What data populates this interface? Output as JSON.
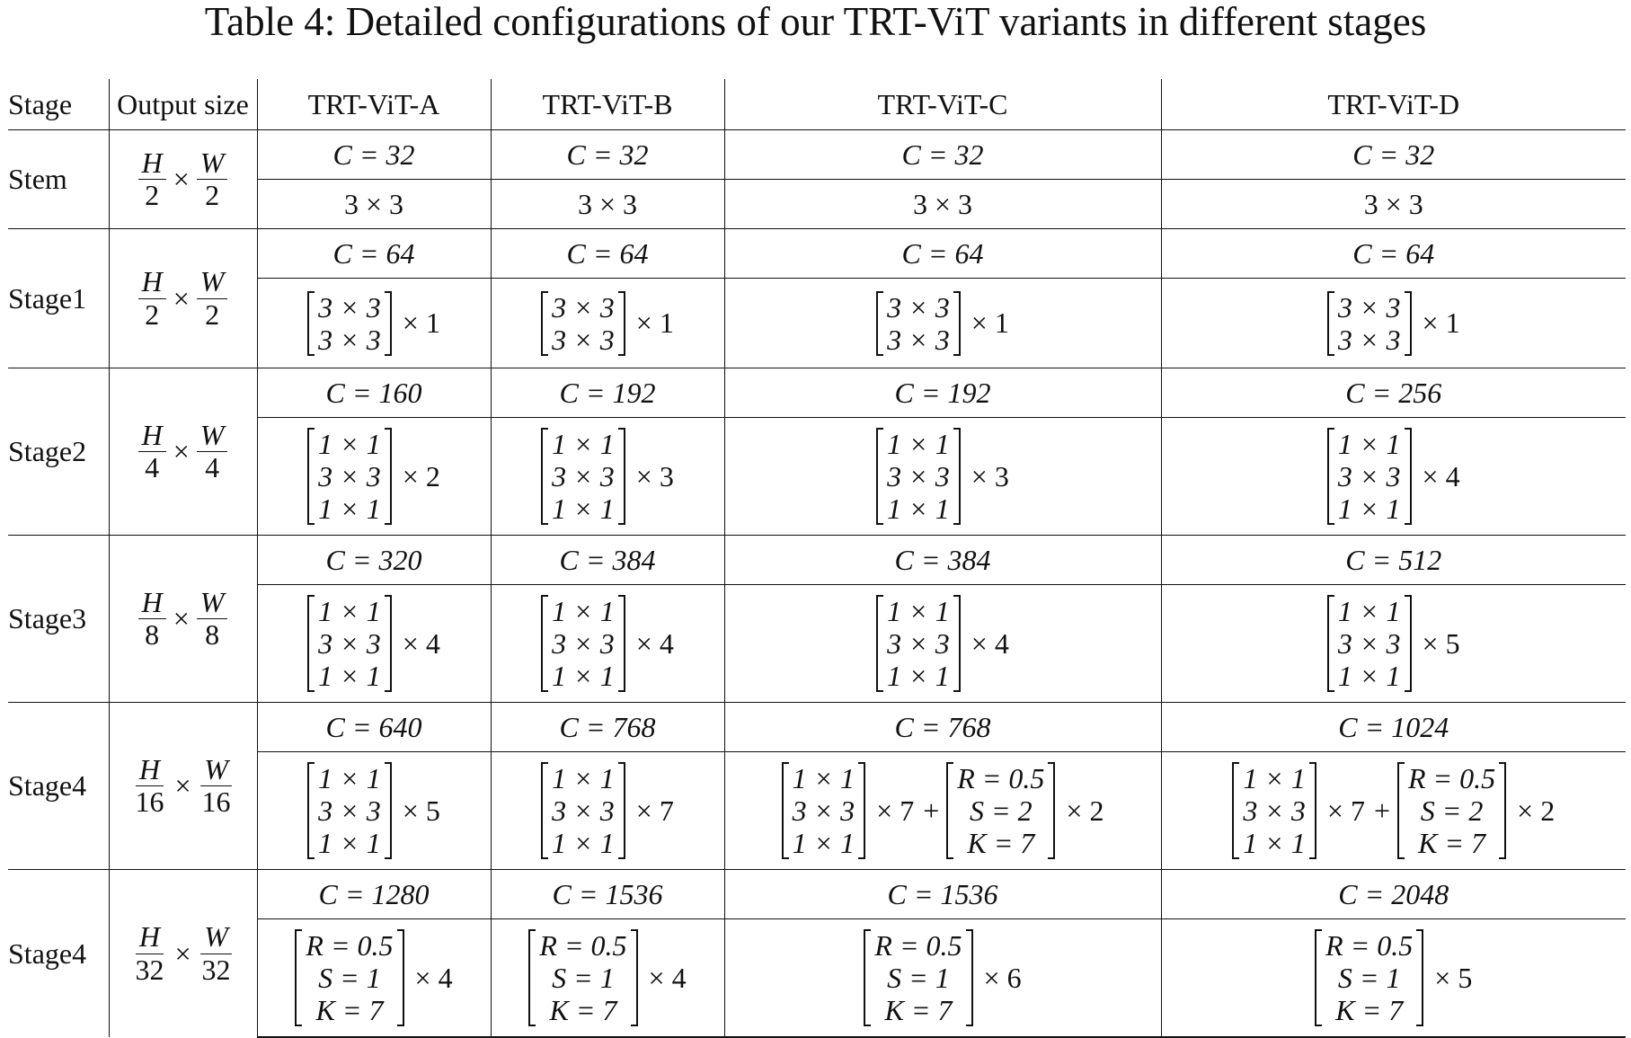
{
  "caption": "Table 4: Detailed configurations of our TRT-ViT variants in different stages",
  "headers": {
    "stage": "Stage",
    "output_size": "Output size",
    "variants": [
      "TRT-ViT-A",
      "TRT-ViT-B",
      "TRT-ViT-C",
      "TRT-ViT-D"
    ]
  },
  "symbols": {
    "times": "×",
    "plus": "+"
  },
  "rows": [
    {
      "label": "Stem",
      "out": {
        "h": "H",
        "hden": "2",
        "w": "W",
        "wden": "2"
      },
      "c": [
        "C = 32",
        "C = 32",
        "C = 32",
        "C = 32"
      ],
      "k": [
        "3 × 3",
        "3 × 3",
        "3 × 3",
        "3 × 3"
      ]
    },
    {
      "label": "Stage1",
      "out": {
        "h": "H",
        "hden": "2",
        "w": "W",
        "wden": "2"
      },
      "c": [
        "C = 64",
        "C = 64",
        "C = 64",
        "C = 64"
      ],
      "blocks": [
        {
          "rows": [
            "3 × 3",
            "3 × 3"
          ],
          "rep": "× 1"
        },
        {
          "rows": [
            "3 × 3",
            "3 × 3"
          ],
          "rep": "× 1"
        },
        {
          "rows": [
            "3 × 3",
            "3 × 3"
          ],
          "rep": "× 1"
        },
        {
          "rows": [
            "3 × 3",
            "3 × 3"
          ],
          "rep": "× 1"
        }
      ]
    },
    {
      "label": "Stage2",
      "out": {
        "h": "H",
        "hden": "4",
        "w": "W",
        "wden": "4"
      },
      "c": [
        "C = 160",
        "C = 192",
        "C = 192",
        "C = 256"
      ],
      "blocks": [
        {
          "rows": [
            "1 × 1",
            "3 × 3",
            "1 × 1"
          ],
          "rep": "× 2"
        },
        {
          "rows": [
            "1 × 1",
            "3 × 3",
            "1 × 1"
          ],
          "rep": "× 3"
        },
        {
          "rows": [
            "1 × 1",
            "3 × 3",
            "1 × 1"
          ],
          "rep": "× 3"
        },
        {
          "rows": [
            "1 × 1",
            "3 × 3",
            "1 × 1"
          ],
          "rep": "× 4"
        }
      ]
    },
    {
      "label": "Stage3",
      "out": {
        "h": "H",
        "hden": "8",
        "w": "W",
        "wden": "8"
      },
      "c": [
        "C = 320",
        "C = 384",
        "C = 384",
        "C = 512"
      ],
      "blocks": [
        {
          "rows": [
            "1 × 1",
            "3 × 3",
            "1 × 1"
          ],
          "rep": "× 4"
        },
        {
          "rows": [
            "1 × 1",
            "3 × 3",
            "1 × 1"
          ],
          "rep": "× 4"
        },
        {
          "rows": [
            "1 × 1",
            "3 × 3",
            "1 × 1"
          ],
          "rep": "× 4"
        },
        {
          "rows": [
            "1 × 1",
            "3 × 3",
            "1 × 1"
          ],
          "rep": "× 5"
        }
      ]
    },
    {
      "label": "Stage4",
      "out": {
        "h": "H",
        "hden": "16",
        "w": "W",
        "wden": "16"
      },
      "c": [
        "C = 640",
        "C = 768",
        "C = 768",
        "C = 1024"
      ],
      "blocks": [
        {
          "rows": [
            "1 × 1",
            "3 × 3",
            "1 × 1"
          ],
          "rep": "× 5"
        },
        {
          "rows": [
            "1 × 1",
            "3 × 3",
            "1 × 1"
          ],
          "rep": "× 7"
        },
        {
          "rows": [
            "1 × 1",
            "3 × 3",
            "1 × 1"
          ],
          "rep": "× 7",
          "rows2": [
            "R = 0.5",
            "S = 2",
            "K = 7"
          ],
          "rep2": "× 2"
        },
        {
          "rows": [
            "1 × 1",
            "3 × 3",
            "1 × 1"
          ],
          "rep": "× 7",
          "rows2": [
            "R = 0.5",
            "S = 2",
            "K = 7"
          ],
          "rep2": "× 2"
        }
      ]
    },
    {
      "label": "Stage4",
      "out": {
        "h": "H",
        "hden": "32",
        "w": "W",
        "wden": "32"
      },
      "c": [
        "C = 1280",
        "C = 1536",
        "C = 1536",
        "C = 2048"
      ],
      "blocks": [
        {
          "rows": [
            "R = 0.5",
            "S = 1",
            "K = 7"
          ],
          "rep": "× 4"
        },
        {
          "rows": [
            "R = 0.5",
            "S = 1",
            "K = 7"
          ],
          "rep": "× 4"
        },
        {
          "rows": [
            "R = 0.5",
            "S = 1",
            "K = 7"
          ],
          "rep": "× 6"
        },
        {
          "rows": [
            "R = 0.5",
            "S = 1",
            "K = 7"
          ],
          "rep": "× 5"
        }
      ]
    }
  ]
}
